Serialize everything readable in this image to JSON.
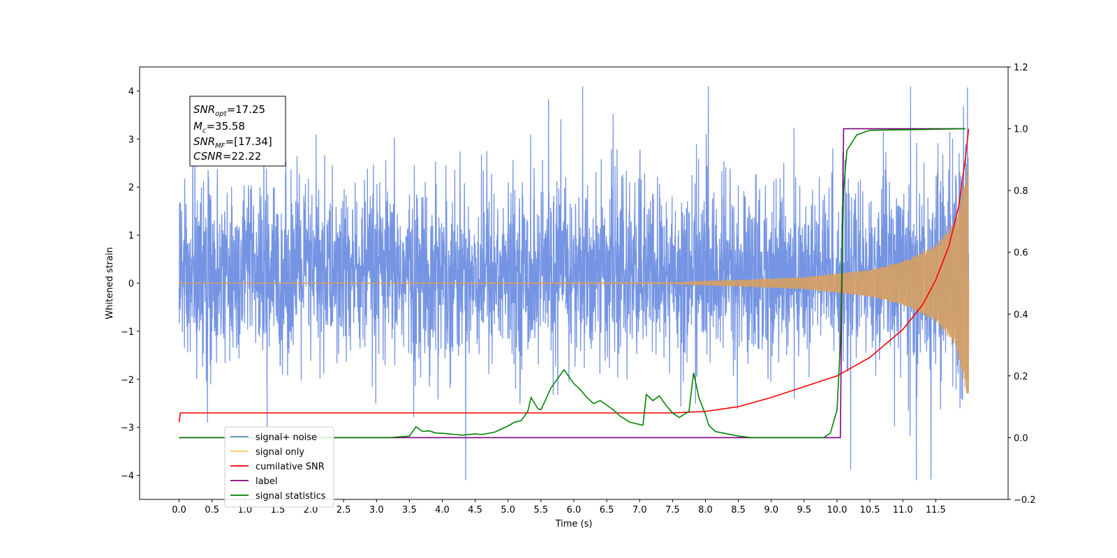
{
  "chart_data": {
    "type": "line",
    "title": "",
    "xlabel": "Time (s)",
    "ylabel": "Whitened strain",
    "xlim": [
      -0.6,
      12.6
    ],
    "ylim": [
      -4.5,
      4.5
    ],
    "y2lim": [
      -0.2,
      1.2
    ],
    "grid": false,
    "legend_position": "lower-left",
    "x_ticks": [
      0.0,
      0.5,
      1.0,
      1.5,
      2.0,
      2.5,
      3.0,
      3.5,
      4.0,
      4.5,
      5.0,
      5.5,
      6.0,
      6.5,
      7.0,
      7.5,
      8.0,
      8.5,
      9.0,
      9.5,
      10.0,
      10.5,
      11.0,
      11.5
    ],
    "x_tick_labels": [
      "0.0",
      "0.5",
      "1.0",
      "1.5",
      "2.0",
      "2.5",
      "3.0",
      "3.5",
      "4.0",
      "4.5",
      "5.0",
      "5.5",
      "6.0",
      "6.5",
      "7.0",
      "7.5",
      "8.0",
      "8.5",
      "9.0",
      "9.5",
      "10.0",
      "10.5",
      "11.0",
      "11.5"
    ],
    "y_ticks": [
      4,
      3,
      2,
      1,
      0,
      -1,
      -2,
      -3,
      -4
    ],
    "y_tick_labels": [
      "4",
      "3",
      "2",
      "1",
      "0",
      "−1",
      "−2",
      "−3",
      "−4"
    ],
    "y2_ticks": [
      1.2,
      1.0,
      0.8,
      0.6,
      0.4,
      0.2,
      0.0,
      -0.2
    ],
    "y2_tick_labels": [
      "1.2",
      "1.0",
      "0.8",
      "0.6",
      "0.4",
      "0.2",
      "0.0",
      "−0.2"
    ],
    "annotation": [
      {
        "main": "SNR",
        "sub": "opt",
        "rest": "=17.25"
      },
      {
        "main": "M",
        "sub": "c",
        "rest": "=35.58"
      },
      {
        "main": "SNR",
        "sub": "MF",
        "rest": "=[17.34]"
      },
      {
        "main": "CSNR",
        "sub": "",
        "rest": "=22.22"
      }
    ],
    "series": [
      {
        "name": "signal+ noise",
        "color": "#6688e0",
        "axis": "left",
        "style": "noise",
        "x_range": [
          0.0,
          12.0
        ],
        "typical_band": [
          -1.8,
          2.2
        ],
        "peak_range": [
          -4.1,
          4.1
        ]
      },
      {
        "name": "signal only",
        "color": "#ffc060",
        "axis": "left",
        "style": "chirp",
        "x_range": [
          0.0,
          12.0
        ],
        "amplitude_points": [
          [
            0.0,
            0.0
          ],
          [
            7.5,
            0.01
          ],
          [
            8.5,
            0.06
          ],
          [
            9.5,
            0.12
          ],
          [
            10.0,
            0.2
          ],
          [
            10.5,
            0.28
          ],
          [
            11.0,
            0.45
          ],
          [
            11.5,
            0.8
          ],
          [
            11.8,
            1.3
          ],
          [
            12.0,
            2.5
          ]
        ]
      },
      {
        "name": "cumilative SNR",
        "color": "#ff0000",
        "axis": "right",
        "points": [
          [
            0.0,
            0.05
          ],
          [
            0.02,
            0.08
          ],
          [
            7.5,
            0.08
          ],
          [
            8.0,
            0.085
          ],
          [
            8.5,
            0.1
          ],
          [
            9.0,
            0.13
          ],
          [
            9.5,
            0.165
          ],
          [
            10.0,
            0.2
          ],
          [
            10.5,
            0.26
          ],
          [
            11.0,
            0.35
          ],
          [
            11.3,
            0.43
          ],
          [
            11.5,
            0.51
          ],
          [
            11.7,
            0.62
          ],
          [
            11.85,
            0.75
          ],
          [
            11.95,
            0.9
          ],
          [
            12.0,
            1.0
          ]
        ]
      },
      {
        "name": "label",
        "color": "#800080",
        "axis": "right",
        "points": [
          [
            0.0,
            0.0
          ],
          [
            10.05,
            0.0
          ],
          [
            10.1,
            1.0
          ],
          [
            11.95,
            1.0
          ]
        ]
      },
      {
        "name": "signal statistics",
        "color": "#008000",
        "axis": "right",
        "points": [
          [
            0.0,
            0.0
          ],
          [
            3.2,
            0.0
          ],
          [
            3.5,
            0.005
          ],
          [
            3.6,
            0.035
          ],
          [
            3.7,
            0.02
          ],
          [
            3.8,
            0.022
          ],
          [
            3.9,
            0.015
          ],
          [
            4.0,
            0.014
          ],
          [
            4.2,
            0.01
          ],
          [
            4.3,
            0.008
          ],
          [
            4.5,
            0.012
          ],
          [
            4.6,
            0.01
          ],
          [
            4.8,
            0.018
          ],
          [
            4.9,
            0.028
          ],
          [
            5.0,
            0.038
          ],
          [
            5.1,
            0.05
          ],
          [
            5.2,
            0.055
          ],
          [
            5.3,
            0.085
          ],
          [
            5.35,
            0.13
          ],
          [
            5.45,
            0.095
          ],
          [
            5.5,
            0.09
          ],
          [
            5.65,
            0.16
          ],
          [
            5.75,
            0.19
          ],
          [
            5.85,
            0.22
          ],
          [
            6.0,
            0.175
          ],
          [
            6.1,
            0.155
          ],
          [
            6.2,
            0.13
          ],
          [
            6.3,
            0.11
          ],
          [
            6.4,
            0.12
          ],
          [
            6.5,
            0.105
          ],
          [
            6.6,
            0.09
          ],
          [
            6.7,
            0.07
          ],
          [
            6.85,
            0.05
          ],
          [
            6.95,
            0.045
          ],
          [
            7.05,
            0.04
          ],
          [
            7.1,
            0.14
          ],
          [
            7.2,
            0.12
          ],
          [
            7.3,
            0.135
          ],
          [
            7.4,
            0.105
          ],
          [
            7.5,
            0.08
          ],
          [
            7.6,
            0.065
          ],
          [
            7.75,
            0.085
          ],
          [
            7.82,
            0.21
          ],
          [
            7.9,
            0.13
          ],
          [
            8.0,
            0.075
          ],
          [
            8.05,
            0.04
          ],
          [
            8.15,
            0.02
          ],
          [
            8.5,
            0.005
          ],
          [
            8.7,
            0.0
          ],
          [
            9.8,
            0.0
          ],
          [
            9.9,
            0.015
          ],
          [
            10.0,
            0.09
          ],
          [
            10.05,
            0.3
          ],
          [
            10.1,
            0.8
          ],
          [
            10.15,
            0.93
          ],
          [
            10.3,
            0.98
          ],
          [
            10.5,
            0.995
          ],
          [
            11.95,
            1.0
          ]
        ]
      }
    ]
  }
}
